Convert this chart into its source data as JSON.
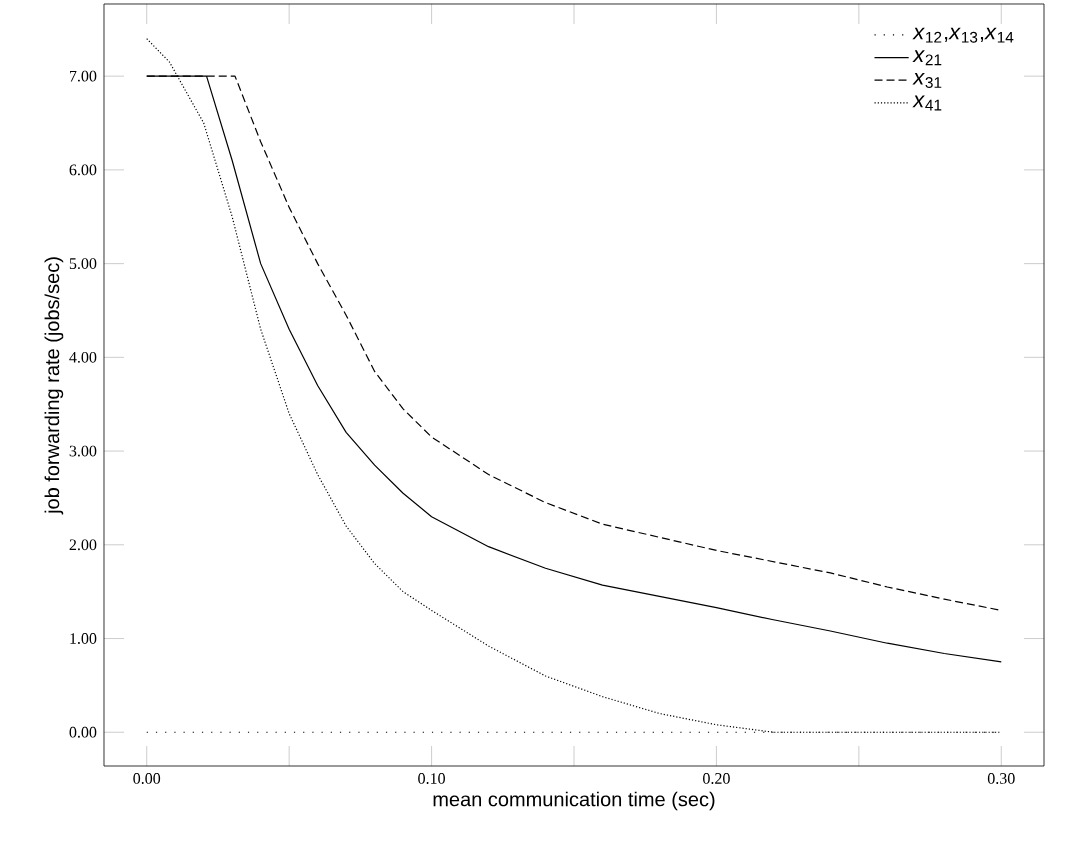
{
  "chart_data": {
    "type": "line",
    "xlabel": "mean communication time (sec)",
    "ylabel": "job forwarding rate (jobs/sec)",
    "xlim": [
      -0.015,
      0.315
    ],
    "ylim": [
      -0.36,
      7.77
    ],
    "xticks": [
      {
        "value": 0,
        "label": "0.00"
      },
      {
        "value": 0.05,
        "label": null
      },
      {
        "value": 0.1,
        "label": "0.10"
      },
      {
        "value": 0.15,
        "label": null
      },
      {
        "value": 0.2,
        "label": "0.20"
      },
      {
        "value": 0.25,
        "label": null
      },
      {
        "value": 0.3,
        "label": "0.30"
      }
    ],
    "yticks": [
      {
        "value": 0,
        "label": "0.00"
      },
      {
        "value": 1,
        "label": "1.00"
      },
      {
        "value": 2,
        "label": "2.00"
      },
      {
        "value": 3,
        "label": "3.00"
      },
      {
        "value": 4,
        "label": "4.00"
      },
      {
        "value": 5,
        "label": "5.00"
      },
      {
        "value": 6,
        "label": "6.00"
      },
      {
        "value": 7,
        "label": "7.00"
      }
    ],
    "legend": "top right",
    "grid": false,
    "marker": "none",
    "series": [
      {
        "name": "*x*$_{12}$,*x*$_{13}$,*x*$_{14}$",
        "color": "#000000",
        "line_style": "dotted",
        "x": [
          0,
          0.3
        ],
        "values": [
          0,
          0
        ]
      },
      {
        "name": "*x*$_{21}$",
        "color": "#000000",
        "line_style": "solid",
        "x": [
          0,
          0.021,
          0.03,
          0.04,
          0.05,
          0.06,
          0.07,
          0.08,
          0.09,
          0.1,
          0.12,
          0.14,
          0.16,
          0.18,
          0.2,
          0.22,
          0.24,
          0.26,
          0.28,
          0.3
        ],
        "values": [
          7.0,
          7.0,
          6.1,
          5.0,
          4.3,
          3.7,
          3.2,
          2.85,
          2.55,
          2.3,
          1.98,
          1.75,
          1.57,
          1.45,
          1.33,
          1.2,
          1.08,
          0.95,
          0.84,
          0.75
        ]
      },
      {
        "name": "*x*$_{31}$",
        "color": "#000000",
        "line_style": "dashed",
        "x": [
          0,
          0.031,
          0.04,
          0.05,
          0.06,
          0.07,
          0.08,
          0.09,
          0.1,
          0.12,
          0.14,
          0.16,
          0.18,
          0.2,
          0.22,
          0.24,
          0.26,
          0.28,
          0.3
        ],
        "values": [
          7.0,
          7.0,
          6.3,
          5.6,
          5.0,
          4.45,
          3.85,
          3.45,
          3.15,
          2.75,
          2.45,
          2.22,
          2.08,
          1.94,
          1.82,
          1.7,
          1.55,
          1.42,
          1.3
        ]
      },
      {
        "name": "*x*$_{41}$",
        "color": "#000000",
        "line_style": "densely dotted",
        "x": [
          0,
          0.008,
          0.02,
          0.03,
          0.04,
          0.05,
          0.06,
          0.07,
          0.08,
          0.09,
          0.1,
          0.12,
          0.14,
          0.16,
          0.18,
          0.2,
          0.22,
          0.3
        ],
        "values": [
          7.4,
          7.15,
          6.5,
          5.5,
          4.3,
          3.4,
          2.75,
          2.2,
          1.8,
          1.5,
          1.3,
          0.92,
          0.6,
          0.38,
          0.2,
          0.08,
          0,
          0
        ]
      }
    ]
  }
}
